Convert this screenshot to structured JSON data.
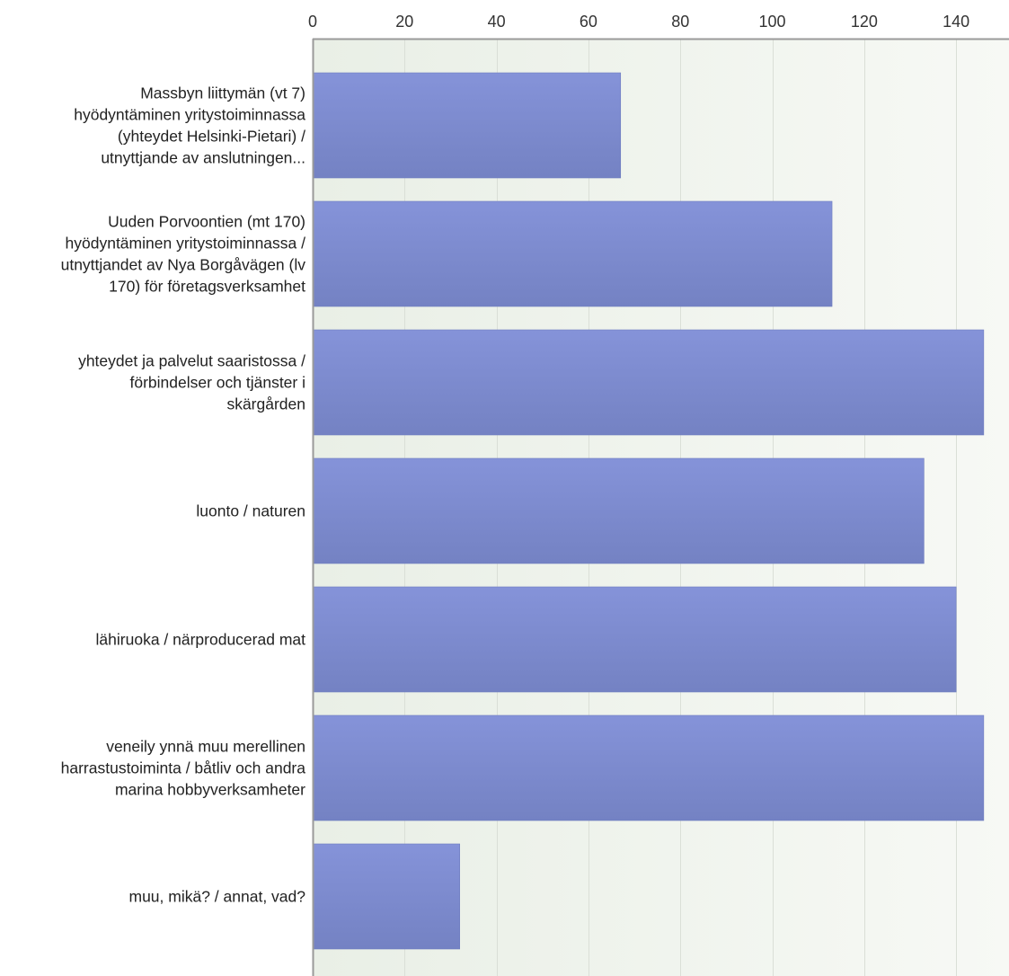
{
  "chart_data": {
    "type": "bar",
    "orientation": "horizontal",
    "categories": [
      [
        "Massbyn liittymän (vt 7)",
        "hyödyntäminen yritystoiminnassa",
        "(yhteydet Helsinki-Pietari) /",
        "utnyttjande av anslutningen..."
      ],
      [
        "Uuden Porvoontien (mt 170)",
        "hyödyntäminen yritystoiminnassa /",
        "utnyttjandet av Nya Borgåvägen (lv",
        "170) för företagsverksamhet"
      ],
      [
        "yhteydet ja palvelut saaristossa /",
        "förbindelser och tjänster i",
        "skärgården"
      ],
      [
        "luonto / naturen"
      ],
      [
        "lähiruoka / närproducerad mat"
      ],
      [
        "veneily ynnä muu merellinen",
        "harrastustoiminta / båtliv och andra",
        "marina hobbyverksamheter"
      ],
      [
        "muu, mikä? / annat, vad?"
      ]
    ],
    "values": [
      67,
      113,
      146,
      133,
      140,
      146,
      32
    ],
    "xlim": [
      0,
      151.5
    ],
    "xticks": [
      0,
      20,
      40,
      60,
      80,
      100,
      120,
      140
    ],
    "axis_position": "top",
    "grid": true,
    "colors": {
      "bar_top": "#8593d9",
      "bar_bottom": "#7482c3",
      "bar_edge": "#6f7dbf",
      "bg_left": "#e9efe6",
      "bg_right": "#f7f9f5",
      "grid": "#dadfd7",
      "axis": "#9a9a9a"
    }
  }
}
